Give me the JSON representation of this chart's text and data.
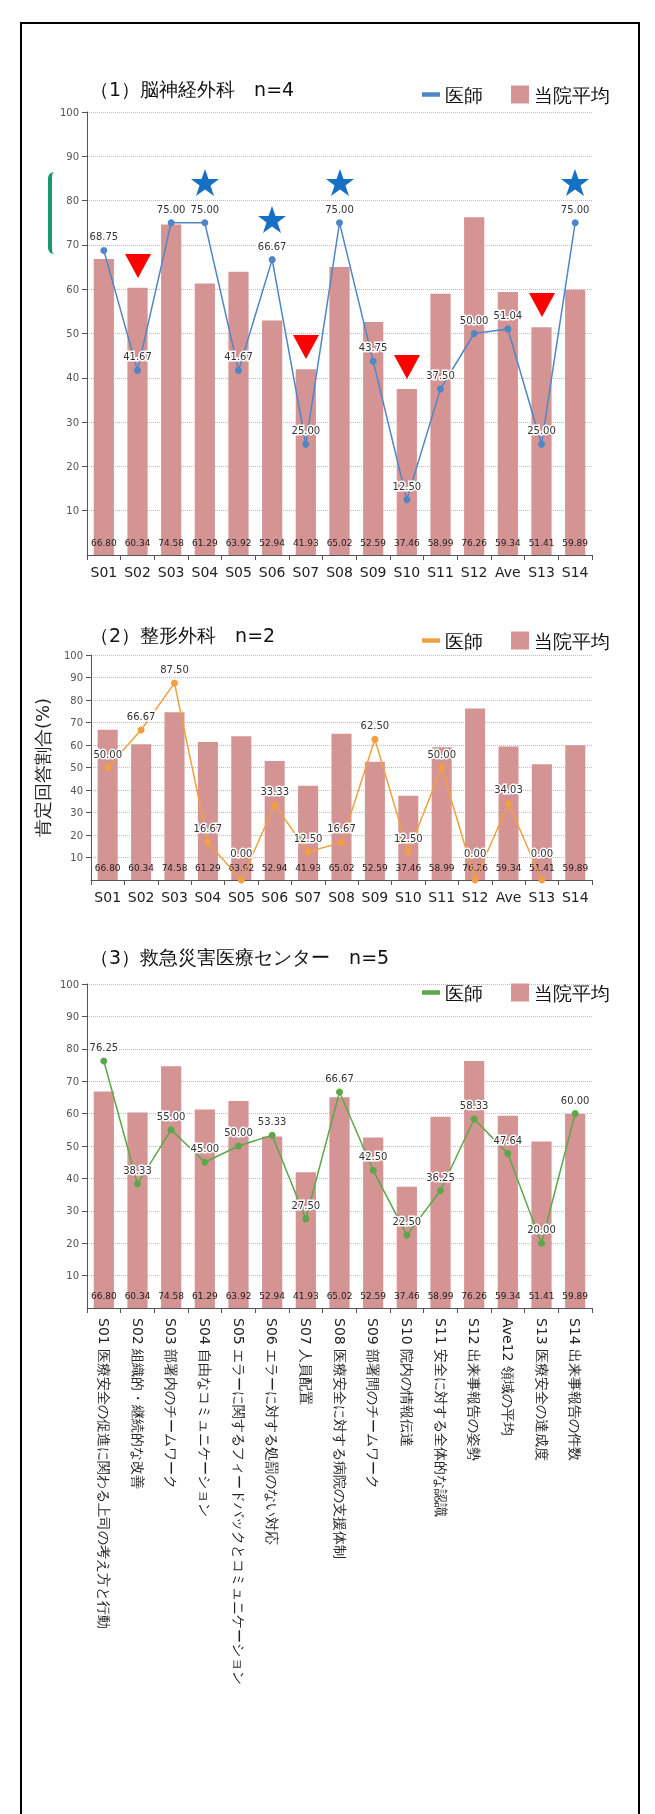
{
  "chart_data": [
    {
      "type": "bar",
      "title": "（1）脳神経外科　n=4",
      "categories": [
        "S01",
        "S02",
        "S03",
        "S04",
        "S05",
        "S06",
        "S07",
        "S08",
        "S09",
        "S10",
        "S11",
        "S12",
        "Ave",
        "S13",
        "S14"
      ],
      "series": [
        {
          "name": "医師",
          "type": "line",
          "color": "#4f86c6",
          "values": [
            68.75,
            41.67,
            75.0,
            75.0,
            41.67,
            66.67,
            25.0,
            75.0,
            43.75,
            12.5,
            37.5,
            50.0,
            51.04,
            25.0,
            75.0
          ],
          "value_labels": [
            "68.75",
            "41.67",
            "75.00",
            "75.00",
            "41.67",
            "66.67",
            "25.00",
            "75.00",
            "43.75",
            "12.50",
            "37.50",
            "50.00",
            "51.04",
            "25.00",
            "75.00"
          ]
        },
        {
          "name": "当院平均",
          "color": "#d49494",
          "values": [
            66.8,
            60.34,
            74.58,
            61.29,
            63.92,
            52.94,
            41.93,
            65.02,
            52.59,
            37.46,
            58.99,
            76.26,
            59.34,
            51.41,
            59.89
          ],
          "value_labels": [
            "66.80",
            "60.34",
            "74.58",
            "61.29",
            "63.92",
            "52.94",
            "41.93",
            "65.02",
            "52.59",
            "37.46",
            "58.99",
            "76.26",
            "59.34",
            "51.41",
            "59.89"
          ]
        }
      ],
      "ylim": [
        0,
        100
      ],
      "yticks": [
        10,
        20,
        30,
        40,
        50,
        60,
        70,
        80,
        90,
        100
      ],
      "grid": "y",
      "legend": "top right",
      "marker": "circle"
    },
    {
      "type": "bar",
      "title": "（2）整形外科　n=2",
      "ylabel": "肯定回答割合(%)",
      "categories": [
        "S01",
        "S02",
        "S03",
        "S04",
        "S05",
        "S06",
        "S07",
        "S08",
        "S09",
        "S10",
        "S11",
        "S12",
        "Ave",
        "S13",
        "S14"
      ],
      "series": [
        {
          "name": "医師",
          "type": "line",
          "color": "#f0a040",
          "values": [
            50.0,
            66.67,
            87.5,
            16.67,
            0.0,
            33.33,
            12.5,
            16.67,
            62.5,
            12.5,
            50.0,
            0.0,
            34.03,
            0.0,
            null
          ],
          "value_labels": [
            "50.00",
            "66.67",
            "87.50",
            "16.67",
            "0.00",
            "33.33",
            "12.50",
            "16.67",
            "62.50",
            "12.50",
            "50.00",
            "0.00",
            "34.03",
            "0.00",
            null
          ]
        },
        {
          "name": "当院平均",
          "color": "#d49494",
          "values": [
            66.8,
            60.34,
            74.58,
            61.29,
            63.92,
            52.94,
            41.93,
            65.02,
            52.59,
            37.46,
            58.99,
            76.26,
            59.34,
            51.41,
            59.89
          ],
          "value_labels": [
            "66.80",
            "60.34",
            "74.58",
            "61.29",
            "63.92",
            "52.94",
            "41.93",
            "65.02",
            "52.59",
            "37.46",
            "58.99",
            "76.26",
            "59.34",
            "51.41",
            "59.89"
          ]
        }
      ],
      "ylim": [
        0,
        100
      ],
      "yticks": [
        10,
        20,
        30,
        40,
        50,
        60,
        70,
        80,
        90,
        100
      ],
      "grid": "y",
      "legend": "top right",
      "marker": "circle"
    },
    {
      "type": "bar",
      "title": "（3）救急災害医療センター　n=5",
      "categories": [
        "S01 医療安全の促進に関わる上司の考え方と行動",
        "S02 組織的・継続的な改善",
        "S03 部署内のチームワーク",
        "S04 自由なコミュニケーション",
        "S05 エラーに関するフィードバックとコミュニケーション",
        "S06 エラーに対する処罰のない対応",
        "S07 人員配置",
        "S08 医療安全に対する病院の支援体制",
        "S09 部署間のチームワーク",
        "S10 院内の情報伝達",
        "S11 安全に対する全体的な認識",
        "S12 出来事報告の姿勢",
        "Ave12 領域の平均",
        "S13 医療安全の達成度",
        "S14 出来事報告の件数"
      ],
      "series": [
        {
          "name": "医師",
          "type": "line",
          "color": "#5aa84a",
          "values": [
            76.25,
            38.33,
            55.0,
            45.0,
            50.0,
            53.33,
            27.5,
            66.67,
            42.5,
            22.5,
            36.25,
            58.33,
            47.64,
            20.0,
            60.0
          ],
          "value_labels": [
            "76.25",
            "38.33",
            "55.00",
            "45.00",
            "50.00",
            "53.33",
            "27.50",
            "66.67",
            "42.50",
            "22.50",
            "36.25",
            "58.33",
            "47.64",
            "20.00",
            "60.00"
          ]
        },
        {
          "name": "当院平均",
          "color": "#d49494",
          "values": [
            66.8,
            60.34,
            74.58,
            61.29,
            63.92,
            52.94,
            41.93,
            65.02,
            52.59,
            37.46,
            58.99,
            76.26,
            59.34,
            51.41,
            59.89
          ],
          "value_labels": [
            "66.80",
            "60.34",
            "74.58",
            "61.29",
            "63.92",
            "52.94",
            "41.93",
            "65.02",
            "52.59",
            "37.46",
            "58.99",
            "76.26",
            "59.34",
            "51.41",
            "59.89"
          ]
        }
      ],
      "ylim": [
        0,
        100
      ],
      "yticks": [
        10,
        20,
        30,
        40,
        50,
        60,
        70,
        80,
        90,
        100
      ],
      "grid": "y",
      "legend": "top right",
      "marker": "circle"
    }
  ]
}
